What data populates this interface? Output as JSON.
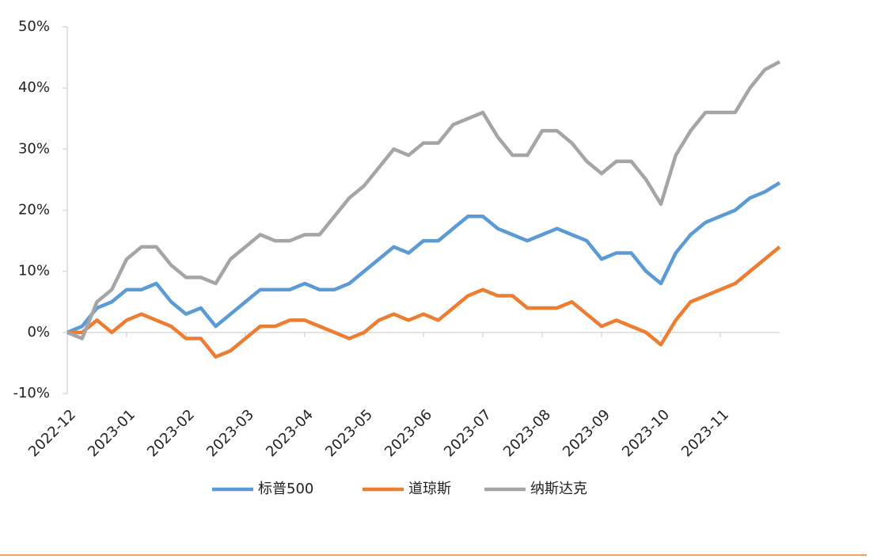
{
  "chart_data": {
    "type": "line",
    "categories": [
      "2022-12",
      null,
      null,
      null,
      "2023-01",
      null,
      null,
      null,
      "2023-02",
      null,
      null,
      null,
      "2023-03",
      null,
      null,
      null,
      "2023-04",
      null,
      null,
      null,
      "2023-05",
      null,
      null,
      null,
      "2023-06",
      null,
      null,
      null,
      "2023-07",
      null,
      null,
      null,
      "2023-08",
      null,
      null,
      null,
      "2023-09",
      null,
      null,
      null,
      "2023-10",
      null,
      null,
      null,
      "2023-11",
      null,
      null,
      null,
      null
    ],
    "series": [
      {
        "name": "标普500",
        "color": "#5b9bd5",
        "values": [
          0,
          1,
          4,
          5,
          7,
          7,
          8,
          5,
          3,
          4,
          1,
          3,
          5,
          7,
          7,
          7,
          8,
          7,
          7,
          8,
          10,
          12,
          14,
          13,
          15,
          15,
          17,
          19,
          19,
          17,
          16,
          15,
          16,
          17,
          16,
          15,
          12,
          13,
          13,
          10,
          8,
          13,
          16,
          18,
          19,
          20,
          22,
          23,
          24.5
        ]
      },
      {
        "name": "道琼斯",
        "color": "#ed7d31",
        "values": [
          0,
          0,
          2,
          0,
          2,
          3,
          2,
          1,
          -1,
          -1,
          -4,
          -3,
          -1,
          1,
          1,
          2,
          2,
          1,
          0,
          -1,
          0,
          2,
          3,
          2,
          3,
          2,
          4,
          6,
          7,
          6,
          6,
          4,
          4,
          4,
          5,
          3,
          1,
          2,
          1,
          0,
          -2,
          2,
          5,
          6,
          7,
          8,
          10,
          12,
          14
        ]
      },
      {
        "name": "纳斯达克",
        "color": "#a5a5a5",
        "values": [
          0,
          -1,
          5,
          7,
          12,
          14,
          14,
          11,
          9,
          9,
          8,
          12,
          14,
          16,
          15,
          15,
          16,
          16,
          19,
          22,
          24,
          27,
          30,
          29,
          31,
          31,
          34,
          35,
          36,
          32,
          29,
          29,
          33,
          33,
          31,
          28,
          26,
          28,
          28,
          25,
          21,
          29,
          33,
          36,
          36,
          36,
          40,
          43,
          44.3
        ]
      }
    ],
    "ylim": [
      -10,
      50
    ],
    "yticks": [
      {
        "value": -10,
        "label": "-10%"
      },
      {
        "value": 0,
        "label": "0%"
      },
      {
        "value": 10,
        "label": "10%"
      },
      {
        "value": 20,
        "label": "20%"
      },
      {
        "value": 30,
        "label": "30%"
      },
      {
        "value": 40,
        "label": "40%"
      },
      {
        "value": 50,
        "label": "50%"
      }
    ],
    "legend": "bottom"
  }
}
